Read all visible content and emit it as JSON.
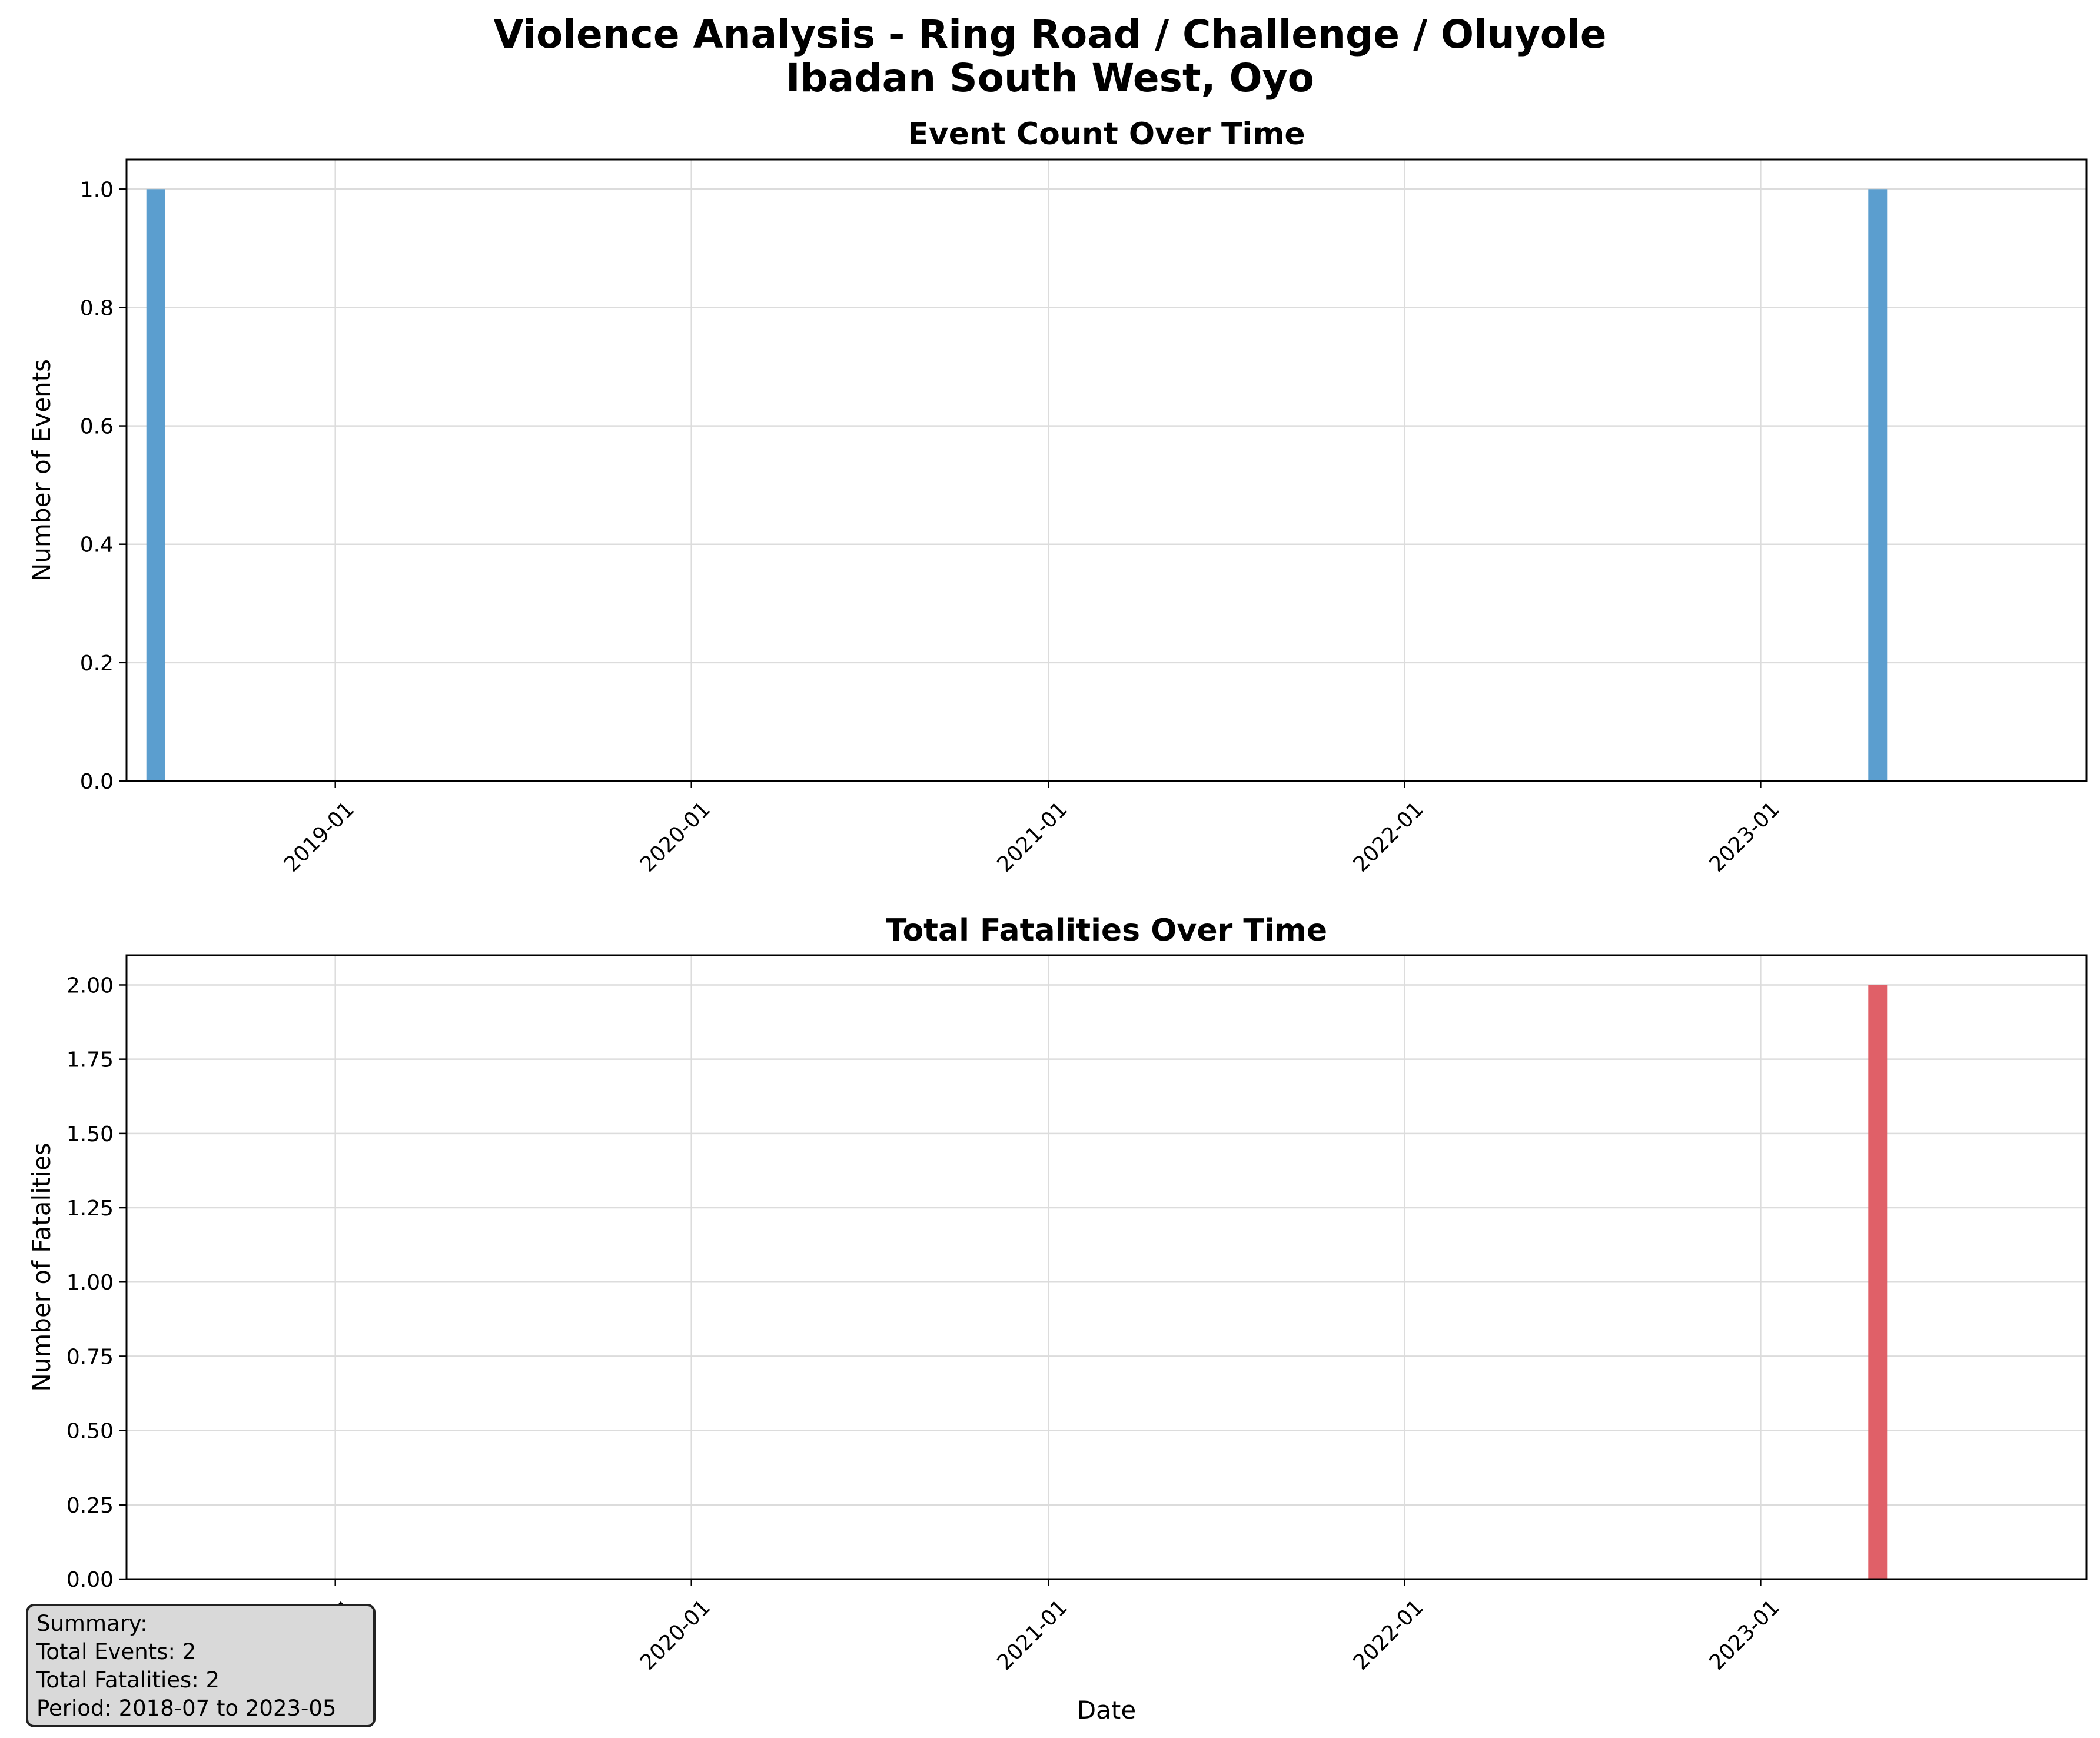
{
  "figure": {
    "title_line1": "Violence Analysis - Ring Road / Challenge / Oluyole",
    "title_line2": "Ibadan South West, Oyo"
  },
  "chart_data": [
    {
      "type": "bar",
      "title": "Event Count Over Time",
      "xlabel": "",
      "ylabel": "Number of Events",
      "x_ticks": [
        "2019-01",
        "2020-01",
        "2021-01",
        "2022-01",
        "2023-01"
      ],
      "x_range": [
        "2018-06-15",
        "2023-12-15"
      ],
      "y_ticks": [
        "0.0",
        "0.2",
        "0.4",
        "0.6",
        "0.8",
        "1.0"
      ],
      "ylim": [
        0,
        1.05
      ],
      "grid": true,
      "color": "#5b9ecf",
      "points": [
        {
          "date": "2018-07",
          "value": 1
        },
        {
          "date": "2023-05",
          "value": 1
        }
      ]
    },
    {
      "type": "bar",
      "title": "Total Fatalities Over Time",
      "xlabel": "Date",
      "ylabel": "Number of Fatalities",
      "x_ticks": [
        "2019-01",
        "2020-01",
        "2021-01",
        "2022-01",
        "2023-01"
      ],
      "x_range": [
        "2018-06-15",
        "2023-12-15"
      ],
      "y_ticks": [
        "0.00",
        "0.25",
        "0.50",
        "0.75",
        "1.00",
        "1.25",
        "1.50",
        "1.75",
        "2.00"
      ],
      "ylim": [
        0,
        2.1
      ],
      "grid": true,
      "color": "#e06068",
      "points": [
        {
          "date": "2023-05",
          "value": 2
        }
      ]
    }
  ],
  "summary": {
    "heading": "Summary:",
    "events": "Total Events: 2",
    "fatalities": "Total Fatalities: 2",
    "period": "Period: 2018-07 to 2023-05"
  }
}
